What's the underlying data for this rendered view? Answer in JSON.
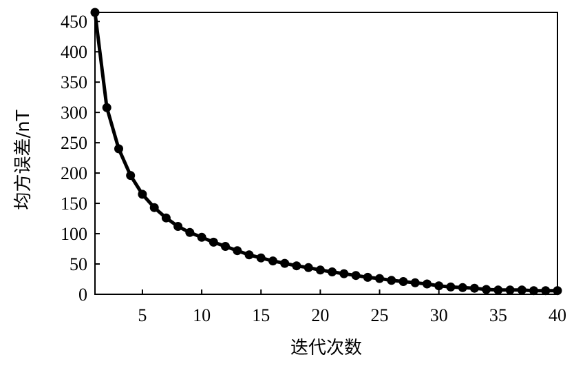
{
  "chart_data": {
    "type": "line",
    "xlabel": "迭代次数",
    "ylabel": "均方误差/nT",
    "xlim": [
      1,
      40
    ],
    "ylim": [
      0,
      465
    ],
    "xticks": [
      5,
      10,
      15,
      20,
      25,
      30,
      35,
      40
    ],
    "yticks": [
      0,
      50,
      100,
      150,
      200,
      250,
      300,
      350,
      400,
      450
    ],
    "grid": false,
    "legend": "none",
    "colors": {
      "line": "#000000",
      "marker": "#000000"
    },
    "series": [
      {
        "x": [
          1,
          2,
          3,
          4,
          5,
          6,
          7,
          8,
          9,
          10,
          11,
          12,
          13,
          14,
          15,
          16,
          17,
          18,
          19,
          20,
          21,
          22,
          23,
          24,
          25,
          26,
          27,
          28,
          29,
          30,
          31,
          32,
          33,
          34,
          35,
          36,
          37,
          38,
          39,
          40
        ],
        "y": [
          465,
          308,
          240,
          196,
          165,
          143,
          126,
          112,
          102,
          94,
          86,
          79,
          72,
          65,
          60,
          55,
          51,
          47,
          44,
          40,
          37,
          34,
          31,
          28,
          26,
          23,
          21,
          19,
          17,
          14,
          12,
          11,
          10,
          8,
          7,
          7,
          7,
          6,
          6,
          6
        ]
      }
    ]
  }
}
